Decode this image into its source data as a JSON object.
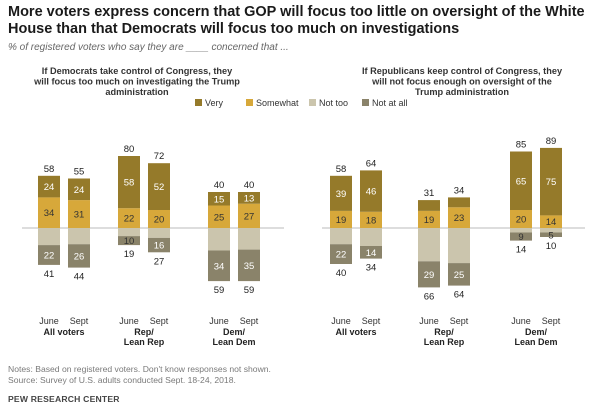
{
  "title": "More voters express concern that GOP will focus too little on oversight of the White House than that Democrats will focus too much on investigations",
  "subtitle": "% of registered voters who say they are ____ concerned that ...",
  "notes": "Notes: Based on registered voters. Don't know responses not shown.",
  "source": "Source: Survey of U.S. adults conducted Sept. 18-24, 2018.",
  "organization": "PEW RESEARCH CENTER",
  "colors": {
    "very": "#957a2a",
    "somewhat": "#d7a83a",
    "not_too": "#cbc5ad",
    "not_at_all": "#8a836a"
  },
  "chart_data": [
    {
      "type": "bar",
      "title": "If Democrats take control of Congress, they will focus too much on investigating the Trump administration",
      "legend": [
        "Very",
        "Somewhat",
        "Not too",
        "Not at all"
      ],
      "groups": [
        {
          "label": "All voters",
          "bars": [
            {
              "period": "June",
              "very": 24,
              "somewhat": 34,
              "not_too": 19,
              "not_at_all": 22,
              "total_concerned": 58,
              "total_not": 41
            },
            {
              "period": "Sept",
              "very": 24,
              "somewhat": 31,
              "not_too": 18,
              "not_at_all": 26,
              "total_concerned": 55,
              "total_not": 44
            }
          ]
        },
        {
          "label": "Rep/ Lean Rep",
          "bars": [
            {
              "period": "June",
              "very": 58,
              "somewhat": 22,
              "not_too": 9,
              "not_at_all": 10,
              "total_concerned": 80,
              "total_not": 19
            },
            {
              "period": "Sept",
              "very": 52,
              "somewhat": 20,
              "not_too": 11,
              "not_at_all": 16,
              "total_concerned": 72,
              "total_not": 27
            }
          ]
        },
        {
          "label": "Dem/ Lean Dem",
          "bars": [
            {
              "period": "June",
              "very": 15,
              "somewhat": 25,
              "not_too": 25,
              "not_at_all": 34,
              "total_concerned": 40,
              "total_not": 59
            },
            {
              "period": "Sept",
              "very": 13,
              "somewhat": 27,
              "not_too": 24,
              "not_at_all": 35,
              "total_concerned": 40,
              "total_not": 59
            }
          ]
        }
      ]
    },
    {
      "type": "bar",
      "title": "If Republicans keep control of Congress, they will not focus enough on oversight of the Trump administration",
      "legend": [
        "Very",
        "Somewhat",
        "Not too",
        "Not at all"
      ],
      "groups": [
        {
          "label": "All voters",
          "bars": [
            {
              "period": "June",
              "very": 39,
              "somewhat": 19,
              "not_too": 18,
              "not_at_all": 22,
              "total_concerned": 58,
              "total_not": 40
            },
            {
              "period": "Sept",
              "very": 46,
              "somewhat": 18,
              "not_too": 20,
              "not_at_all": 14,
              "total_concerned": 64,
              "total_not": 34
            }
          ]
        },
        {
          "label": "Rep/ Lean Rep",
          "bars": [
            {
              "period": "June",
              "very": 12,
              "somewhat": 19,
              "not_too": 37,
              "not_at_all": 29,
              "total_concerned": 31,
              "total_not": 66
            },
            {
              "period": "Sept",
              "very": 11,
              "somewhat": 23,
              "not_too": 39,
              "not_at_all": 25,
              "total_concerned": 34,
              "total_not": 64
            }
          ]
        },
        {
          "label": "Dem/ Lean Dem",
          "bars": [
            {
              "period": "June",
              "very": 65,
              "somewhat": 20,
              "not_too": 5,
              "not_at_all": 9,
              "total_concerned": 85,
              "total_not": 14
            },
            {
              "period": "Sept",
              "very": 75,
              "somewhat": 14,
              "not_too": 5,
              "not_at_all": 5,
              "total_concerned": 89,
              "total_not": 10
            }
          ]
        }
      ]
    }
  ]
}
